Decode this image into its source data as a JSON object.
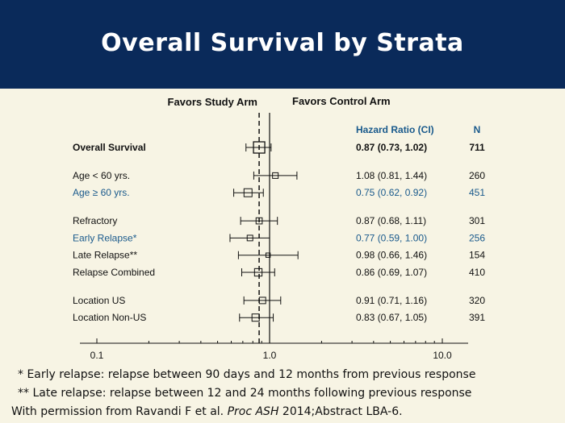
{
  "slide": {
    "title": "Overall Survival by Strata",
    "favors_left": "Favors Study Arm",
    "favors_right": "Favors Control Arm",
    "footnotes": [
      {
        "marker": "*",
        "text": "Early relapse: relapse between 90 days and 12 months from previous response"
      },
      {
        "marker": "**",
        "text": "Late relapse: relapse between 12 and 24 months following previous response"
      }
    ],
    "source_text": "With permission from Ravandi F et al.",
    "source_journal": "Proc ASH",
    "source_rest": " 2014;Abstract LBA-6."
  },
  "chart_data": {
    "type": "forest",
    "x_scale": "log",
    "xlim": [
      0.1,
      10
    ],
    "x_ticks": [
      0.1,
      1.0,
      10.0
    ],
    "x_tick_labels": [
      "0.1",
      "1.0",
      "10.0"
    ],
    "reference_line": 1.0,
    "pooled_reference_line": 0.87,
    "col_headers": {
      "hr": "Hazard Ratio (CI)",
      "n": "N"
    },
    "header_color": "#1a5a8c",
    "rows": [
      {
        "label": "Overall Survival",
        "hr": 0.87,
        "lo": 0.73,
        "hi": 1.02,
        "hr_text": "0.87 (0.73, 1.02)",
        "n": "711",
        "bold": true,
        "highlight": false,
        "group": 0
      },
      {
        "label": "Age < 60 yrs.",
        "hr": 1.08,
        "lo": 0.81,
        "hi": 1.44,
        "hr_text": "1.08 (0.81, 1.44)",
        "n": "260",
        "bold": false,
        "highlight": false,
        "group": 1
      },
      {
        "label": "Age ≥ 60 yrs.",
        "hr": 0.75,
        "lo": 0.62,
        "hi": 0.92,
        "hr_text": "0.75 (0.62, 0.92)",
        "n": "451",
        "bold": false,
        "highlight": true,
        "group": 1
      },
      {
        "label": "Refractory",
        "hr": 0.87,
        "lo": 0.68,
        "hi": 1.11,
        "hr_text": "0.87 (0.68, 1.11)",
        "n": "301",
        "bold": false,
        "highlight": false,
        "group": 2
      },
      {
        "label": "Early Relapse*",
        "hr": 0.77,
        "lo": 0.59,
        "hi": 1.0,
        "hr_text": "0.77 (0.59, 1.00)",
        "n": "256",
        "bold": false,
        "highlight": true,
        "group": 2
      },
      {
        "label": "Late Relapse**",
        "hr": 0.98,
        "lo": 0.66,
        "hi": 1.46,
        "hr_text": "0.98 (0.66, 1.46)",
        "n": "154",
        "bold": false,
        "highlight": false,
        "group": 2
      },
      {
        "label": "Relapse Combined",
        "hr": 0.86,
        "lo": 0.69,
        "hi": 1.07,
        "hr_text": "0.86 (0.69, 1.07)",
        "n": "410",
        "bold": false,
        "highlight": false,
        "group": 2
      },
      {
        "label": "Location US",
        "hr": 0.91,
        "lo": 0.71,
        "hi": 1.16,
        "hr_text": "0.91 (0.71, 1.16)",
        "n": "320",
        "bold": false,
        "highlight": false,
        "group": 3
      },
      {
        "label": "Location Non-US",
        "hr": 0.83,
        "lo": 0.67,
        "hi": 1.05,
        "hr_text": "0.83 (0.67, 1.05)",
        "n": "391",
        "bold": false,
        "highlight": false,
        "group": 3
      }
    ]
  }
}
